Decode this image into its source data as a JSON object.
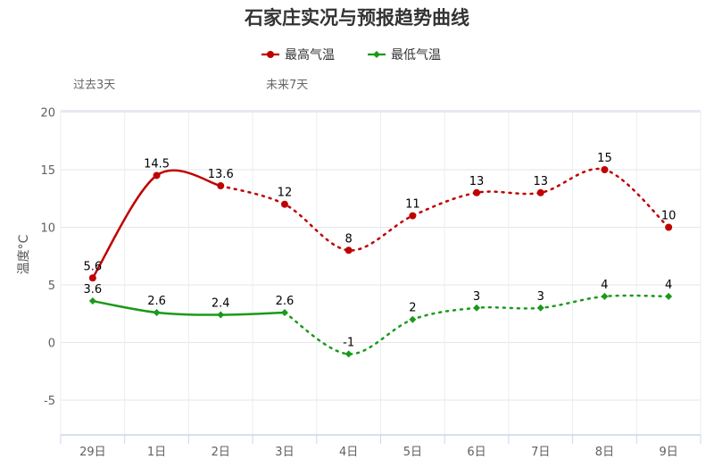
{
  "chart_data": {
    "type": "line",
    "title": "石家庄实况与预报趋势曲线",
    "ylabel": "温度°C",
    "xlabel": "",
    "categories": [
      "29日",
      "1日",
      "2日",
      "3日",
      "4日",
      "5日",
      "6日",
      "7日",
      "8日",
      "9日"
    ],
    "yticks": [
      -5,
      0,
      5,
      10,
      15,
      20
    ],
    "ylim": [
      -8,
      21
    ],
    "grid": true,
    "legend_position": "top-center",
    "period_labels": {
      "past": "过去3天",
      "future": "未来7天"
    },
    "series": [
      {
        "name": "最高气温",
        "color": "#c00000",
        "values": [
          5.6,
          14.5,
          13.6,
          12,
          8,
          11,
          13,
          13,
          15,
          10
        ],
        "labels": [
          "5.6",
          "14.5",
          "13.6",
          "12",
          "8",
          "11",
          "13",
          "13",
          "15",
          "10"
        ]
      },
      {
        "name": "最低气温",
        "color": "#1a9a1a",
        "values": [
          3.6,
          2.6,
          2.4,
          2.6,
          -1,
          2,
          3,
          3,
          4,
          4
        ],
        "labels": [
          "3.6",
          "2.6",
          "2.4",
          "2.6",
          "-1",
          "2",
          "3",
          "3",
          "4",
          "4"
        ]
      }
    ],
    "observed_through_index": {
      "最高气温": 2,
      "最低气温": 3
    }
  }
}
